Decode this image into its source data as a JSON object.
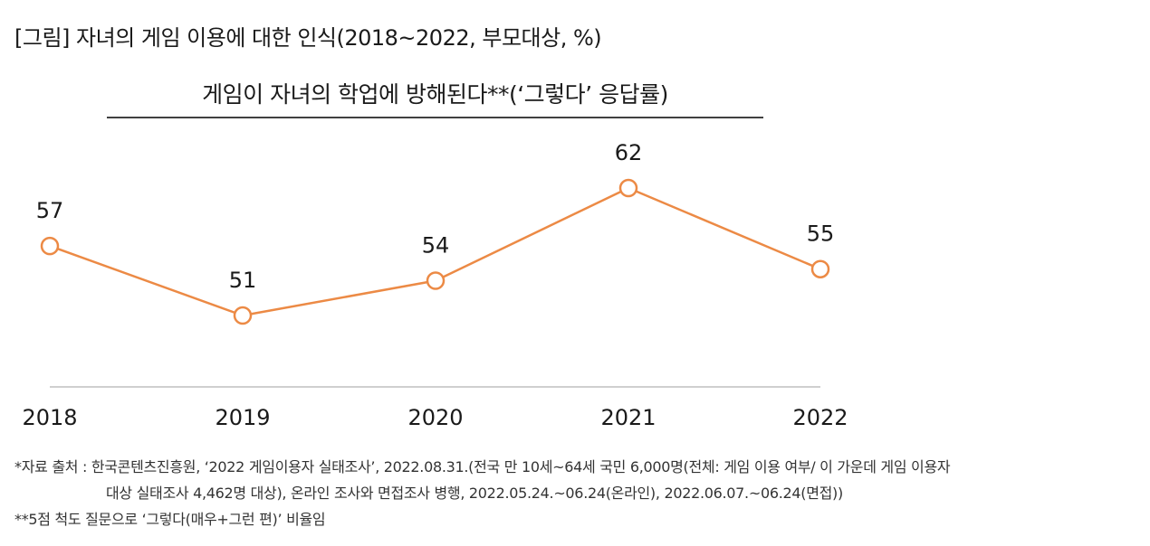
{
  "figure_title": "[그림] 자녀의 게임 이용에 대한 인식(2018~2022, 부모대상, %)",
  "notes": {
    "source_line1": "*자료 출처 : 한국콘텐츠진흥원, ‘2022 게임이용자 실태조사’, 2022.08.31.(전국 만 10세~64세 국민 6,000명(전체: 게임 이용 여부/ 이 가운데 게임 이용자",
    "source_line2": "대상 실태조사 4,462명 대상), 온라인 조사와 면접조사 병행, 2022.05.24.~06.24(온라인), 2022.06.07.~06.24(면접))",
    "scale_note": "**5점 척도 질문으로 ‘그렇다(매우+그런 편)’ 비율임"
  },
  "colors": {
    "line": "#ec8a45",
    "axis": "#bfbfbf",
    "text": "#1a1a1a"
  },
  "chart_data": {
    "type": "line",
    "title": "게임이 자녀의 학업에 방해된다**(‘그렇다’ 응답률)",
    "categories": [
      "2018",
      "2019",
      "2020",
      "2021",
      "2022"
    ],
    "series": [
      {
        "name": "그렇다 응답률",
        "values": [
          57,
          51,
          54,
          62,
          55
        ]
      }
    ],
    "ylim": [
      40,
      66
    ],
    "xlabel": "",
    "ylabel": "",
    "grid": false,
    "legend": "none",
    "data_labels": true
  }
}
